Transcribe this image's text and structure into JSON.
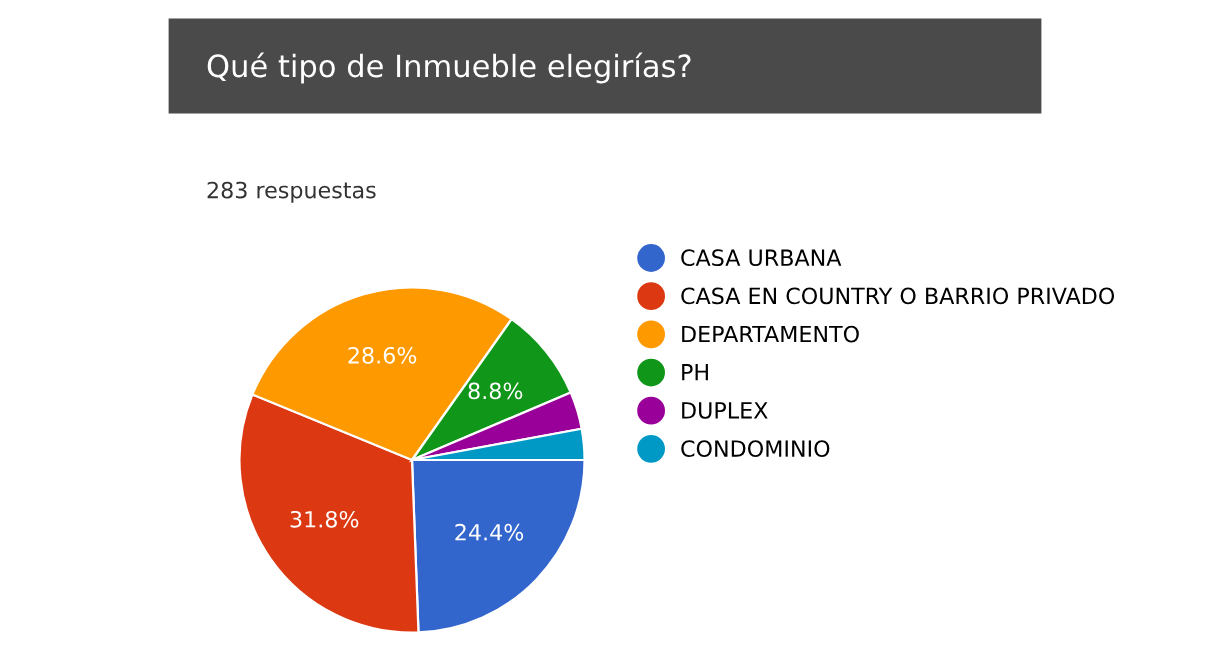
{
  "chart_data": {
    "type": "pie",
    "title": "Qué tipo de Inmueble elegirías?",
    "subtitle": "283 respuestas",
    "categories": [
      "CASA URBANA",
      "CASA EN COUNTRY O BARRIO PRIVADO",
      "DEPARTAMENTO",
      "PH",
      "DUPLEX",
      "CONDOMINIO"
    ],
    "values": [
      24.4,
      31.8,
      28.6,
      8.8,
      3.5,
      2.9
    ],
    "colors": [
      "#3366cc",
      "#dc3912",
      "#ff9900",
      "#109618",
      "#990099",
      "#0099c6"
    ],
    "value_labels": [
      "24.4%",
      "31.8%",
      "28.6%",
      "8.8%",
      null,
      null
    ],
    "legend": "right"
  }
}
